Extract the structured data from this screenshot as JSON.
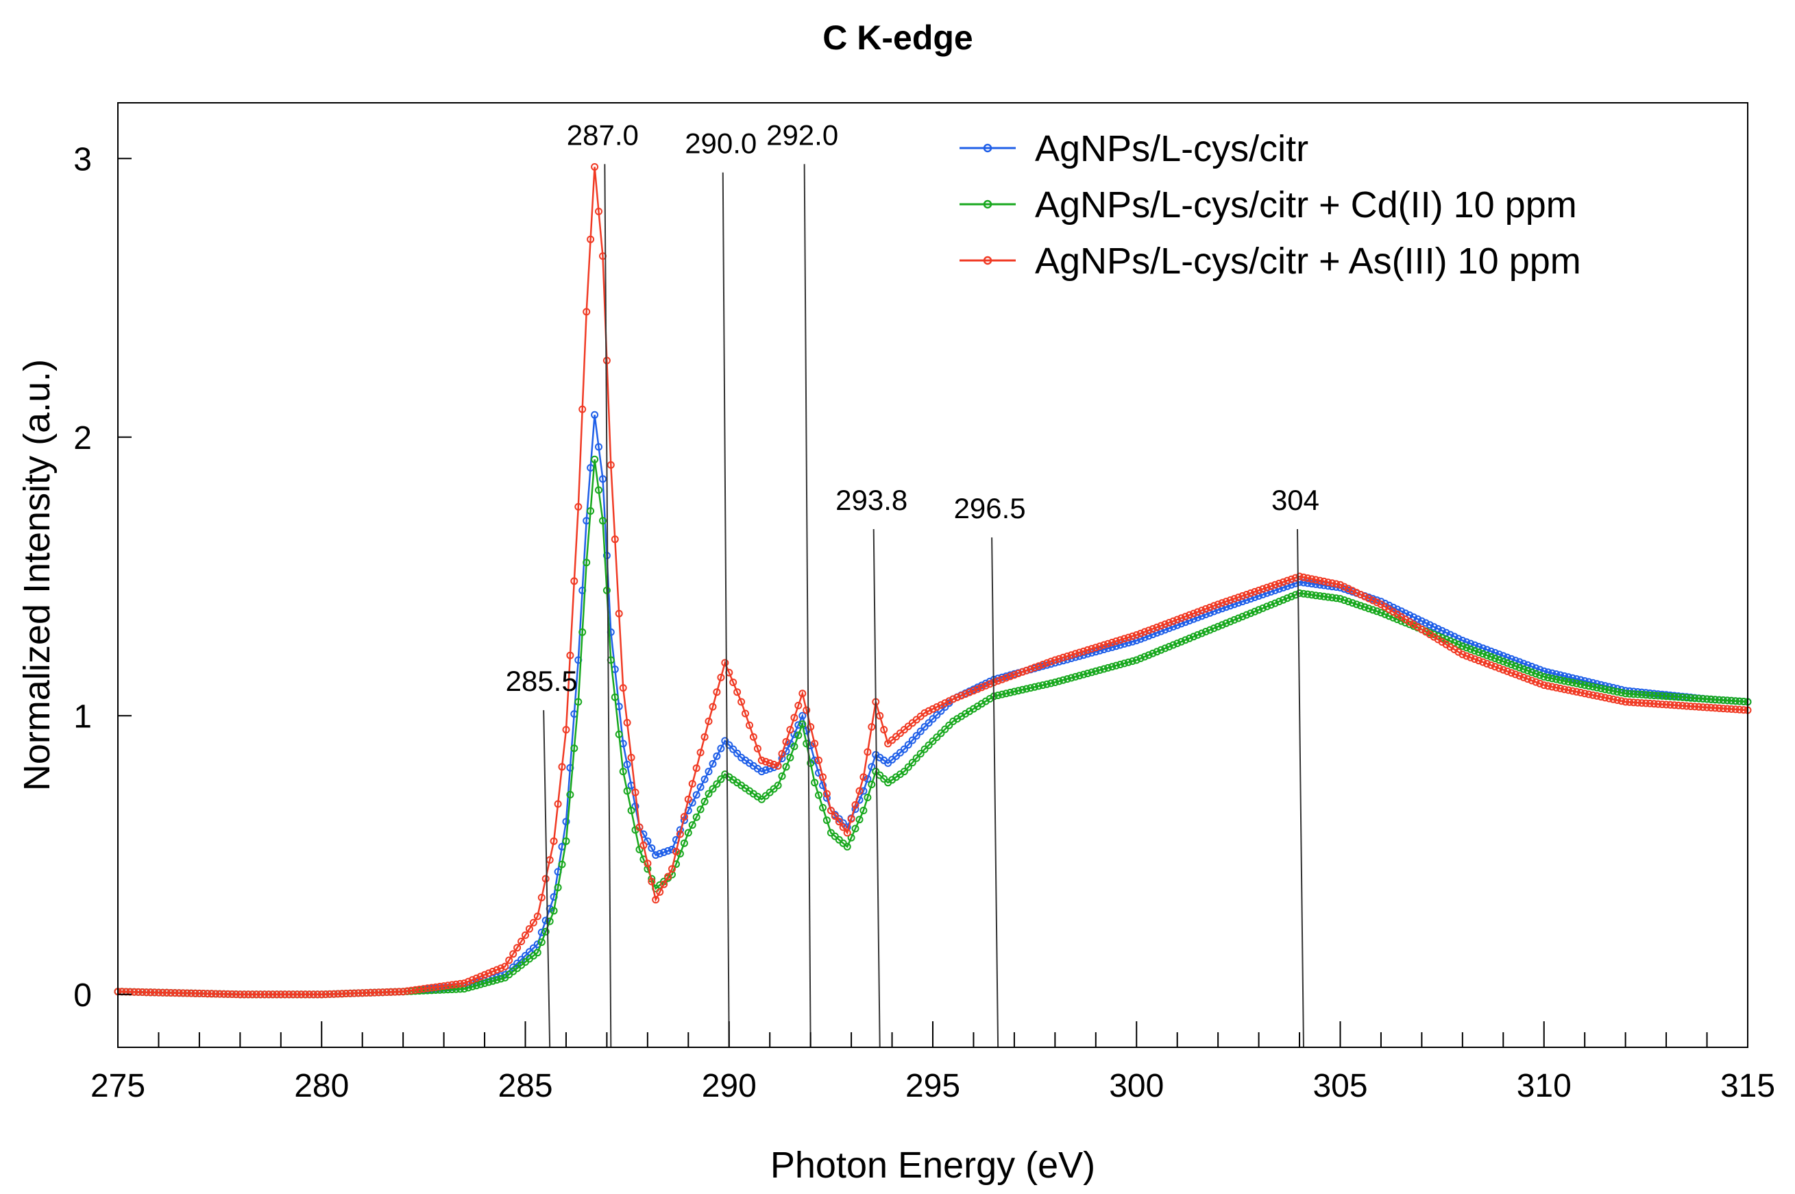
{
  "chart_data": {
    "type": "line",
    "title": "C K-edge",
    "xlabel": "Photon Energy (eV)",
    "ylabel": "Normalized Intensity (a.u.)",
    "xlim": [
      275,
      315
    ],
    "ylim": [
      -0.19,
      3.2
    ],
    "xticks": [
      275,
      280,
      285,
      290,
      295,
      300,
      305,
      310,
      315
    ],
    "yticks": [
      0,
      1,
      2,
      3
    ],
    "legend_position": "top-right",
    "grid": false,
    "series": [
      {
        "name": "AgNPs/L-cys/citr",
        "color": "#1f5fe8",
        "points": [
          [
            275,
            0.01
          ],
          [
            278,
            0.0
          ],
          [
            280,
            0.0
          ],
          [
            282,
            0.01
          ],
          [
            283.5,
            0.03
          ],
          [
            284.5,
            0.07
          ],
          [
            285.3,
            0.18
          ],
          [
            285.7,
            0.35
          ],
          [
            286.0,
            0.62
          ],
          [
            286.3,
            1.2
          ],
          [
            286.5,
            1.7
          ],
          [
            286.7,
            2.08
          ],
          [
            286.9,
            1.85
          ],
          [
            287.1,
            1.3
          ],
          [
            287.4,
            0.9
          ],
          [
            287.8,
            0.6
          ],
          [
            288.2,
            0.5
          ],
          [
            288.6,
            0.52
          ],
          [
            289.0,
            0.66
          ],
          [
            289.5,
            0.8
          ],
          [
            289.9,
            0.91
          ],
          [
            290.3,
            0.85
          ],
          [
            290.8,
            0.8
          ],
          [
            291.2,
            0.82
          ],
          [
            291.5,
            0.9
          ],
          [
            291.8,
            1.0
          ],
          [
            292.1,
            0.84
          ],
          [
            292.5,
            0.66
          ],
          [
            292.9,
            0.6
          ],
          [
            293.3,
            0.73
          ],
          [
            293.6,
            0.86
          ],
          [
            293.9,
            0.83
          ],
          [
            294.3,
            0.88
          ],
          [
            294.8,
            0.96
          ],
          [
            295.5,
            1.06
          ],
          [
            296.5,
            1.13
          ],
          [
            298,
            1.19
          ],
          [
            300,
            1.27
          ],
          [
            302,
            1.38
          ],
          [
            304,
            1.48
          ],
          [
            305,
            1.46
          ],
          [
            306,
            1.41
          ],
          [
            308,
            1.27
          ],
          [
            310,
            1.16
          ],
          [
            312,
            1.09
          ],
          [
            314,
            1.06
          ],
          [
            315,
            1.05
          ]
        ]
      },
      {
        "name": "AgNPs/L-cys/citr + Cd(II) 10 ppm",
        "color": "#18a81e",
        "points": [
          [
            275,
            0.01
          ],
          [
            278,
            0.0
          ],
          [
            280,
            0.0
          ],
          [
            282,
            0.01
          ],
          [
            283.5,
            0.02
          ],
          [
            284.5,
            0.06
          ],
          [
            285.3,
            0.15
          ],
          [
            285.7,
            0.3
          ],
          [
            286.0,
            0.55
          ],
          [
            286.3,
            1.05
          ],
          [
            286.5,
            1.55
          ],
          [
            286.7,
            1.92
          ],
          [
            286.9,
            1.7
          ],
          [
            287.1,
            1.2
          ],
          [
            287.4,
            0.8
          ],
          [
            287.8,
            0.52
          ],
          [
            288.2,
            0.38
          ],
          [
            288.6,
            0.43
          ],
          [
            289.0,
            0.58
          ],
          [
            289.5,
            0.72
          ],
          [
            289.9,
            0.79
          ],
          [
            290.3,
            0.75
          ],
          [
            290.8,
            0.7
          ],
          [
            291.2,
            0.75
          ],
          [
            291.5,
            0.85
          ],
          [
            291.8,
            0.97
          ],
          [
            292.1,
            0.76
          ],
          [
            292.5,
            0.58
          ],
          [
            292.9,
            0.53
          ],
          [
            293.3,
            0.66
          ],
          [
            293.6,
            0.8
          ],
          [
            293.9,
            0.76
          ],
          [
            294.3,
            0.8
          ],
          [
            294.8,
            0.88
          ],
          [
            295.5,
            0.98
          ],
          [
            296.5,
            1.07
          ],
          [
            298,
            1.12
          ],
          [
            300,
            1.2
          ],
          [
            302,
            1.32
          ],
          [
            304,
            1.44
          ],
          [
            305,
            1.42
          ],
          [
            306,
            1.37
          ],
          [
            308,
            1.25
          ],
          [
            310,
            1.14
          ],
          [
            312,
            1.08
          ],
          [
            314,
            1.06
          ],
          [
            315,
            1.05
          ]
        ]
      },
      {
        "name": "AgNPs/L-cys/citr + As(III) 10 ppm",
        "color": "#f03a24",
        "points": [
          [
            275,
            0.01
          ],
          [
            278,
            0.0
          ],
          [
            280,
            0.0
          ],
          [
            282,
            0.01
          ],
          [
            283.5,
            0.04
          ],
          [
            284.5,
            0.1
          ],
          [
            285.3,
            0.28
          ],
          [
            285.7,
            0.55
          ],
          [
            286.0,
            0.95
          ],
          [
            286.3,
            1.75
          ],
          [
            286.5,
            2.45
          ],
          [
            286.7,
            2.97
          ],
          [
            286.9,
            2.65
          ],
          [
            287.1,
            1.9
          ],
          [
            287.4,
            1.1
          ],
          [
            287.8,
            0.6
          ],
          [
            288.2,
            0.34
          ],
          [
            288.6,
            0.45
          ],
          [
            289.0,
            0.7
          ],
          [
            289.5,
            0.98
          ],
          [
            289.9,
            1.19
          ],
          [
            290.3,
            1.05
          ],
          [
            290.8,
            0.84
          ],
          [
            291.2,
            0.82
          ],
          [
            291.5,
            0.95
          ],
          [
            291.8,
            1.08
          ],
          [
            292.1,
            0.9
          ],
          [
            292.5,
            0.66
          ],
          [
            292.9,
            0.58
          ],
          [
            293.3,
            0.78
          ],
          [
            293.6,
            1.05
          ],
          [
            293.9,
            0.9
          ],
          [
            294.3,
            0.95
          ],
          [
            294.8,
            1.01
          ],
          [
            295.5,
            1.06
          ],
          [
            296.5,
            1.12
          ],
          [
            298,
            1.2
          ],
          [
            300,
            1.29
          ],
          [
            302,
            1.4
          ],
          [
            304,
            1.5
          ],
          [
            305,
            1.47
          ],
          [
            306,
            1.4
          ],
          [
            308,
            1.22
          ],
          [
            310,
            1.11
          ],
          [
            312,
            1.05
          ],
          [
            314,
            1.03
          ],
          [
            315,
            1.02
          ]
        ]
      }
    ],
    "reference_lines": [
      {
        "label": "285.5",
        "x_bottom": 285.6,
        "y_top": 1.02
      },
      {
        "label": "287.0",
        "x_bottom": 287.1,
        "y_top": 2.98
      },
      {
        "label": "290.0",
        "x_bottom": 290.0,
        "y_top": 2.95
      },
      {
        "label": "292.0",
        "x_bottom": 292.0,
        "y_top": 2.98
      },
      {
        "label": "293.8",
        "x_bottom": 293.7,
        "y_top": 1.67
      },
      {
        "label": "296.5",
        "x_bottom": 296.6,
        "y_top": 1.64
      },
      {
        "label": "304",
        "x_bottom": 304.1,
        "y_top": 1.67
      }
    ]
  }
}
